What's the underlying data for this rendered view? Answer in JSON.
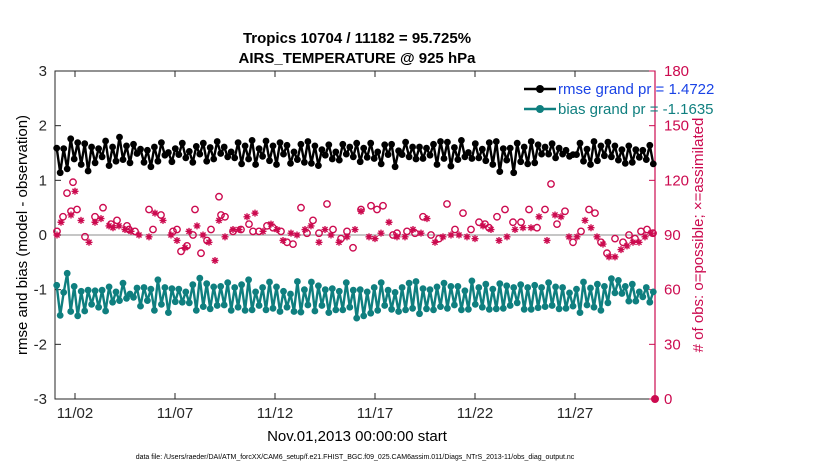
{
  "chart_data": {
    "type": "line",
    "title": "Tropics 10704 / 11182 = 95.725%",
    "subtitle": "AIRS_TEMPERATURE @ 925 hPa",
    "xlabel": "Nov.01,2013 00:00:00 start",
    "ylabel": "rmse and bias (model - observation)",
    "ylabel_right": "# of obs: o=possible; ×=assimilated",
    "xlim": [
      "2013-11-01",
      "2013-12-01"
    ],
    "ylim": [
      -3,
      3
    ],
    "ylim_right": [
      0,
      180
    ],
    "x_ticks": [
      "11/02",
      "11/07",
      "11/12",
      "11/17",
      "11/22",
      "11/27"
    ],
    "y_ticks": [
      "-3",
      "-2",
      "-1",
      "0",
      "1",
      "2",
      "3"
    ],
    "y_ticks_right": [
      "0",
      "30",
      "60",
      "90",
      "120",
      "150",
      "180"
    ],
    "grid": false,
    "legend_position": "top-right",
    "colors": {
      "rmse": "#000000",
      "bias": "#0f7f7f",
      "obs": "#cc0a4f",
      "rmse_label": "#1a43e6",
      "bias_label": "#0f7f7f",
      "zero_line": "#b3b3b3"
    },
    "legend": {
      "rmse": "rmse grand pr = 1.4722",
      "bias": "bias grand pr = -1.1635"
    },
    "footer": "data file: /Users/raeder/DAI/ATM_forcXX/CAM6_setup/f.e21.FHIST_BGC.f09_025.CAM6assim.011/Diags_NTrS_2013-11/obs_diag_output.nc",
    "series": [
      {
        "name": "rmse grand pr = 1.4722",
        "values": [
          1.59,
          1.14,
          1.58,
          1.21,
          1.76,
          1.39,
          1.69,
          1.29,
          1.67,
          1.17,
          1.61,
          1.32,
          1.58,
          1.43,
          1.72,
          1.27,
          1.61,
          1.35,
          1.79,
          1.38,
          1.63,
          1.32,
          1.66,
          1.49,
          1.57,
          1.33,
          1.55,
          1.25,
          1.61,
          1.35,
          1.69,
          1.46,
          1.51,
          1.34,
          1.58,
          1.47,
          1.68,
          1.41,
          1.53,
          1.33,
          1.62,
          1.48,
          1.68,
          1.35,
          1.6,
          1.39,
          1.71,
          1.49,
          1.61,
          1.43,
          1.52,
          1.41,
          1.69,
          1.3,
          1.63,
          1.39,
          1.73,
          1.29,
          1.58,
          1.44,
          1.72,
          1.36,
          1.63,
          1.29,
          1.69,
          1.48,
          1.64,
          1.31,
          1.52,
          1.38,
          1.66,
          1.33,
          1.71,
          1.31,
          1.63,
          1.27,
          1.56,
          1.46,
          1.65,
          1.39,
          1.52,
          1.37,
          1.66,
          1.48,
          1.61,
          1.43,
          1.68,
          1.34,
          1.59,
          1.42,
          1.68,
          1.4,
          1.52,
          1.3,
          1.65,
          1.47,
          1.66,
          1.25,
          1.54,
          1.47,
          1.7,
          1.43,
          1.61,
          1.39,
          1.61,
          1.4,
          1.59,
          1.46,
          1.66,
          1.29,
          1.71,
          1.4,
          1.7,
          1.26,
          1.6,
          1.38,
          1.73,
          1.43,
          1.51,
          1.4,
          1.67,
          1.41,
          1.57,
          1.36,
          1.69,
          1.29,
          1.71,
          1.16,
          1.58,
          1.37,
          1.59,
          1.14,
          1.68,
          1.34,
          1.61,
          1.3,
          1.71,
          1.32,
          1.65,
          1.48,
          1.61,
          1.48,
          1.67,
          1.41,
          1.59,
          1.48,
          1.55,
          1.44,
          1.47,
          1.47,
          1.68,
          1.35,
          1.57,
          1.29,
          1.71,
          1.36,
          1.63,
          1.45,
          1.7,
          1.43,
          1.63,
          1.37,
          1.56,
          1.31,
          1.63,
          1.33,
          1.56,
          1.42,
          1.55,
          1.38,
          1.64,
          1.3
        ]
      },
      {
        "name": "bias grand pr = -1.1635",
        "values": [
          -0.92,
          -1.47,
          -1.05,
          -0.7,
          -1.4,
          -0.94,
          -1.48,
          -1.03,
          -1.39,
          -1.01,
          -1.27,
          -1.02,
          -1.32,
          -1.01,
          -1.39,
          -0.95,
          -1.23,
          -1.04,
          -1.2,
          -0.88,
          -1.16,
          -1.08,
          -1.14,
          -0.97,
          -1.3,
          -0.96,
          -1.2,
          -0.99,
          -1.38,
          -0.82,
          -1.27,
          -0.96,
          -1.42,
          -0.98,
          -1.22,
          -0.99,
          -1.23,
          -1.04,
          -1.24,
          -0.91,
          -1.38,
          -0.79,
          -1.31,
          -0.89,
          -1.35,
          -0.95,
          -1.29,
          -0.94,
          -1.28,
          -0.87,
          -1.38,
          -0.96,
          -1.32,
          -0.91,
          -1.38,
          -0.82,
          -1.37,
          -1.04,
          -1.29,
          -0.96,
          -1.37,
          -0.86,
          -1.34,
          -0.95,
          -1.4,
          -1.03,
          -1.32,
          -1.08,
          -1.4,
          -0.85,
          -1.41,
          -1.0,
          -1.28,
          -0.86,
          -1.39,
          -0.93,
          -1.29,
          -1.0,
          -1.42,
          -0.98,
          -1.37,
          -1.03,
          -1.37,
          -0.87,
          -1.32,
          -1.01,
          -1.52,
          -1.0,
          -1.48,
          -1.04,
          -1.43,
          -0.96,
          -1.38,
          -0.87,
          -1.29,
          -1.01,
          -1.36,
          -1.05,
          -1.4,
          -0.96,
          -1.37,
          -0.88,
          -1.34,
          -0.85,
          -1.44,
          -0.98,
          -1.35,
          -1.0,
          -1.37,
          -0.95,
          -1.31,
          -0.88,
          -1.34,
          -0.94,
          -1.28,
          -0.94,
          -1.37,
          -1.02,
          -1.36,
          -0.84,
          -1.27,
          -0.96,
          -1.32,
          -0.9,
          -1.36,
          -0.99,
          -1.35,
          -0.89,
          -1.34,
          -0.93,
          -1.29,
          -0.96,
          -1.24,
          -0.91,
          -1.36,
          -0.96,
          -1.36,
          -0.92,
          -1.33,
          -0.96,
          -1.31,
          -0.87,
          -1.29,
          -0.95,
          -1.35,
          -0.96,
          -1.34,
          -1.06,
          -1.3,
          -0.99,
          -1.42,
          -0.86,
          -1.28,
          -0.97,
          -1.32,
          -0.9,
          -1.38,
          -0.94,
          -1.24,
          -0.8,
          -1.06,
          -0.83,
          -1.07,
          -0.94,
          -1.21,
          -0.9,
          -1.21,
          -1.04,
          -1.13,
          -0.96,
          -1.23,
          -1.04
        ]
      }
    ],
    "obs_possible": [
      {
        "x": 0.1,
        "y": 92
      },
      {
        "x": 0.4,
        "y": 100
      },
      {
        "x": 0.6,
        "y": 113
      },
      {
        "x": 0.8,
        "y": 103
      },
      {
        "x": 0.9,
        "y": 119
      },
      {
        "x": 1.1,
        "y": 104
      },
      {
        "x": 1.5,
        "y": 89
      },
      {
        "x": 2.0,
        "y": 100
      },
      {
        "x": 2.4,
        "y": 105
      },
      {
        "x": 2.8,
        "y": 96
      },
      {
        "x": 3.1,
        "y": 98
      },
      {
        "x": 3.6,
        "y": 95
      },
      {
        "x": 3.7,
        "y": 93
      },
      {
        "x": 4.0,
        "y": 92
      },
      {
        "x": 4.7,
        "y": 104
      },
      {
        "x": 4.9,
        "y": 93
      },
      {
        "x": 5.3,
        "y": 101
      },
      {
        "x": 5.9,
        "y": 92
      },
      {
        "x": 6.1,
        "y": 93
      },
      {
        "x": 6.3,
        "y": 81
      },
      {
        "x": 6.6,
        "y": 84
      },
      {
        "x": 6.9,
        "y": 90
      },
      {
        "x": 7.0,
        "y": 104
      },
      {
        "x": 7.3,
        "y": 80
      },
      {
        "x": 7.6,
        "y": 87
      },
      {
        "x": 7.8,
        "y": 93
      },
      {
        "x": 8.2,
        "y": 111
      },
      {
        "x": 8.3,
        "y": 101
      },
      {
        "x": 8.5,
        "y": 100
      },
      {
        "x": 8.9,
        "y": 92
      },
      {
        "x": 9.3,
        "y": 93
      },
      {
        "x": 9.7,
        "y": 96
      },
      {
        "x": 9.9,
        "y": 92
      },
      {
        "x": 10.2,
        "y": 92
      },
      {
        "x": 10.6,
        "y": 95
      },
      {
        "x": 10.9,
        "y": 94
      },
      {
        "x": 11.3,
        "y": 92
      },
      {
        "x": 11.6,
        "y": 86
      },
      {
        "x": 11.9,
        "y": 85
      },
      {
        "x": 12.3,
        "y": 105
      },
      {
        "x": 12.6,
        "y": 91
      },
      {
        "x": 12.9,
        "y": 98
      },
      {
        "x": 13.2,
        "y": 91
      },
      {
        "x": 13.6,
        "y": 107
      },
      {
        "x": 13.9,
        "y": 93
      },
      {
        "x": 14.3,
        "y": 88
      },
      {
        "x": 14.6,
        "y": 92
      },
      {
        "x": 14.9,
        "y": 83
      },
      {
        "x": 15.3,
        "y": 104
      },
      {
        "x": 15.8,
        "y": 106
      },
      {
        "x": 16.1,
        "y": 104
      },
      {
        "x": 16.4,
        "y": 106
      },
      {
        "x": 16.9,
        "y": 90
      },
      {
        "x": 17.1,
        "y": 91
      },
      {
        "x": 17.6,
        "y": 92
      },
      {
        "x": 18.0,
        "y": 91
      },
      {
        "x": 18.4,
        "y": 100
      },
      {
        "x": 18.8,
        "y": 90
      },
      {
        "x": 19.2,
        "y": 88
      },
      {
        "x": 19.6,
        "y": 107
      },
      {
        "x": 20.0,
        "y": 93
      },
      {
        "x": 20.4,
        "y": 102
      },
      {
        "x": 20.8,
        "y": 93
      },
      {
        "x": 21.2,
        "y": 97
      },
      {
        "x": 21.5,
        "y": 96
      },
      {
        "x": 21.7,
        "y": 94
      },
      {
        "x": 22.1,
        "y": 100
      },
      {
        "x": 22.5,
        "y": 104
      },
      {
        "x": 22.9,
        "y": 97
      },
      {
        "x": 23.3,
        "y": 97
      },
      {
        "x": 23.7,
        "y": 104
      },
      {
        "x": 24.1,
        "y": 94
      },
      {
        "x": 24.5,
        "y": 104
      },
      {
        "x": 24.8,
        "y": 118
      },
      {
        "x": 25.1,
        "y": 96
      },
      {
        "x": 25.5,
        "y": 103
      },
      {
        "x": 25.9,
        "y": 86
      },
      {
        "x": 26.3,
        "y": 92
      },
      {
        "x": 26.7,
        "y": 104
      },
      {
        "x": 27.0,
        "y": 102
      },
      {
        "x": 27.3,
        "y": 86
      },
      {
        "x": 27.6,
        "y": 80
      },
      {
        "x": 28.0,
        "y": 88
      },
      {
        "x": 28.4,
        "y": 86
      },
      {
        "x": 28.7,
        "y": 90
      },
      {
        "x": 29.0,
        "y": 88
      },
      {
        "x": 29.3,
        "y": 92
      },
      {
        "x": 29.6,
        "y": 93
      },
      {
        "x": 29.9,
        "y": 91
      }
    ],
    "obs_assimilated": [
      {
        "x": 0.1,
        "y": 90
      },
      {
        "x": 0.3,
        "y": 97
      },
      {
        "x": 0.8,
        "y": 101
      },
      {
        "x": 1.0,
        "y": 114
      },
      {
        "x": 1.3,
        "y": 98
      },
      {
        "x": 1.7,
        "y": 86
      },
      {
        "x": 2.0,
        "y": 97
      },
      {
        "x": 2.3,
        "y": 99
      },
      {
        "x": 2.7,
        "y": 95
      },
      {
        "x": 2.9,
        "y": 94
      },
      {
        "x": 3.2,
        "y": 95
      },
      {
        "x": 3.5,
        "y": 93
      },
      {
        "x": 3.8,
        "y": 92
      },
      {
        "x": 4.2,
        "y": 90
      },
      {
        "x": 4.7,
        "y": 89
      },
      {
        "x": 5.0,
        "y": 102
      },
      {
        "x": 5.4,
        "y": 98
      },
      {
        "x": 5.8,
        "y": 90
      },
      {
        "x": 6.1,
        "y": 87
      },
      {
        "x": 6.5,
        "y": 83
      },
      {
        "x": 6.7,
        "y": 92
      },
      {
        "x": 7.1,
        "y": 95
      },
      {
        "x": 7.4,
        "y": 90
      },
      {
        "x": 7.7,
        "y": 86
      },
      {
        "x": 8.0,
        "y": 76
      },
      {
        "x": 8.2,
        "y": 98
      },
      {
        "x": 8.5,
        "y": 89
      },
      {
        "x": 8.9,
        "y": 93
      },
      {
        "x": 9.2,
        "y": 93
      },
      {
        "x": 9.6,
        "y": 100
      },
      {
        "x": 10.0,
        "y": 102
      },
      {
        "x": 10.4,
        "y": 92
      },
      {
        "x": 10.8,
        "y": 96
      },
      {
        "x": 11.1,
        "y": 93
      },
      {
        "x": 11.4,
        "y": 87
      },
      {
        "x": 11.8,
        "y": 91
      },
      {
        "x": 12.1,
        "y": 90
      },
      {
        "x": 12.5,
        "y": 93
      },
      {
        "x": 12.8,
        "y": 95
      },
      {
        "x": 13.2,
        "y": 86
      },
      {
        "x": 13.5,
        "y": 93
      },
      {
        "x": 13.8,
        "y": 90
      },
      {
        "x": 14.2,
        "y": 86
      },
      {
        "x": 14.6,
        "y": 89
      },
      {
        "x": 15.0,
        "y": 93
      },
      {
        "x": 15.3,
        "y": 103
      },
      {
        "x": 15.7,
        "y": 89
      },
      {
        "x": 16.0,
        "y": 88
      },
      {
        "x": 16.3,
        "y": 91
      },
      {
        "x": 16.7,
        "y": 97
      },
      {
        "x": 17.1,
        "y": 89
      },
      {
        "x": 17.5,
        "y": 89
      },
      {
        "x": 17.9,
        "y": 93
      },
      {
        "x": 18.3,
        "y": 91
      },
      {
        "x": 18.6,
        "y": 99
      },
      {
        "x": 19.0,
        "y": 86
      },
      {
        "x": 19.4,
        "y": 89
      },
      {
        "x": 19.8,
        "y": 90
      },
      {
        "x": 20.2,
        "y": 90
      },
      {
        "x": 20.6,
        "y": 89
      },
      {
        "x": 21.0,
        "y": 88
      },
      {
        "x": 21.4,
        "y": 95
      },
      {
        "x": 21.8,
        "y": 93
      },
      {
        "x": 22.2,
        "y": 87
      },
      {
        "x": 22.6,
        "y": 89
      },
      {
        "x": 23.0,
        "y": 93
      },
      {
        "x": 23.4,
        "y": 94
      },
      {
        "x": 23.8,
        "y": 94
      },
      {
        "x": 24.2,
        "y": 100
      },
      {
        "x": 24.6,
        "y": 87
      },
      {
        "x": 25.0,
        "y": 101
      },
      {
        "x": 25.3,
        "y": 100
      },
      {
        "x": 25.7,
        "y": 89
      },
      {
        "x": 26.1,
        "y": 89
      },
      {
        "x": 26.5,
        "y": 98
      },
      {
        "x": 26.8,
        "y": 94
      },
      {
        "x": 27.1,
        "y": 89
      },
      {
        "x": 27.4,
        "y": 85
      },
      {
        "x": 27.7,
        "y": 78
      },
      {
        "x": 28.0,
        "y": 78
      },
      {
        "x": 28.3,
        "y": 82
      },
      {
        "x": 28.6,
        "y": 84
      },
      {
        "x": 28.9,
        "y": 86
      },
      {
        "x": 29.2,
        "y": 86
      },
      {
        "x": 29.5,
        "y": 89
      },
      {
        "x": 29.8,
        "y": 91
      }
    ]
  }
}
